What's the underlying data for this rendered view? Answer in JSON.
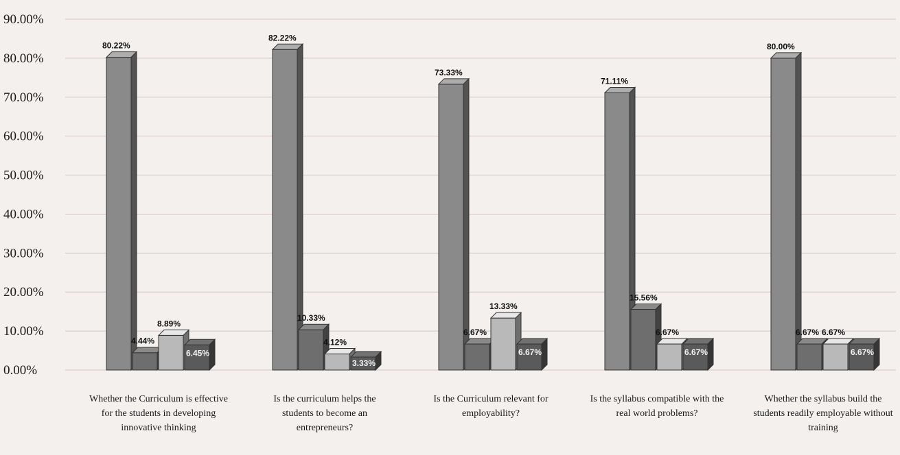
{
  "chart_data": {
    "type": "bar",
    "title": "",
    "xlabel": "",
    "ylabel": "",
    "ylim": [
      0,
      90
    ],
    "yticks": [
      "0.00%",
      "10.00%",
      "20.00%",
      "30.00%",
      "40.00%",
      "50.00%",
      "60.00%",
      "70.00%",
      "80.00%",
      "90.00%"
    ],
    "grid": true,
    "categories": [
      [
        "Whether the Curriculum is effective",
        "for the students in developing",
        "innovative thinking"
      ],
      [
        "Is the curriculum helps the",
        "students to become an",
        "entrepreneurs?"
      ],
      [
        "Is the Curriculum relevant for",
        "employability?"
      ],
      [
        "Is the syllabus compatible with the",
        "real world problems?"
      ],
      [
        "Whether the syllabus build the",
        "students readily employable without",
        "training"
      ]
    ],
    "series": [
      {
        "values": [
          80.22,
          82.22,
          73.33,
          71.11,
          80.0
        ],
        "labels": [
          "80.22%",
          "82.22%",
          "73.33%",
          "71.11%",
          "80.00%"
        ]
      },
      {
        "values": [
          4.44,
          10.33,
          6.67,
          15.56,
          6.67
        ],
        "labels": [
          "4.44%",
          "10.33%",
          "6.67%",
          "15.56%",
          "6.67%"
        ]
      },
      {
        "values": [
          8.89,
          4.12,
          13.33,
          6.67,
          6.67
        ],
        "labels": [
          "8.89%",
          "4.12%",
          "13.33%",
          "6.67%",
          "6.67%"
        ]
      },
      {
        "values": [
          6.45,
          3.33,
          6.67,
          6.67,
          6.67
        ],
        "labels": [
          "6.45%",
          "3.33%",
          "6.67%",
          "6.67%",
          "6.67%"
        ]
      }
    ],
    "colors": [
      "#8a8a8a",
      "#6e6e6e",
      "#b9b9b9",
      "#5a5a5a"
    ]
  }
}
